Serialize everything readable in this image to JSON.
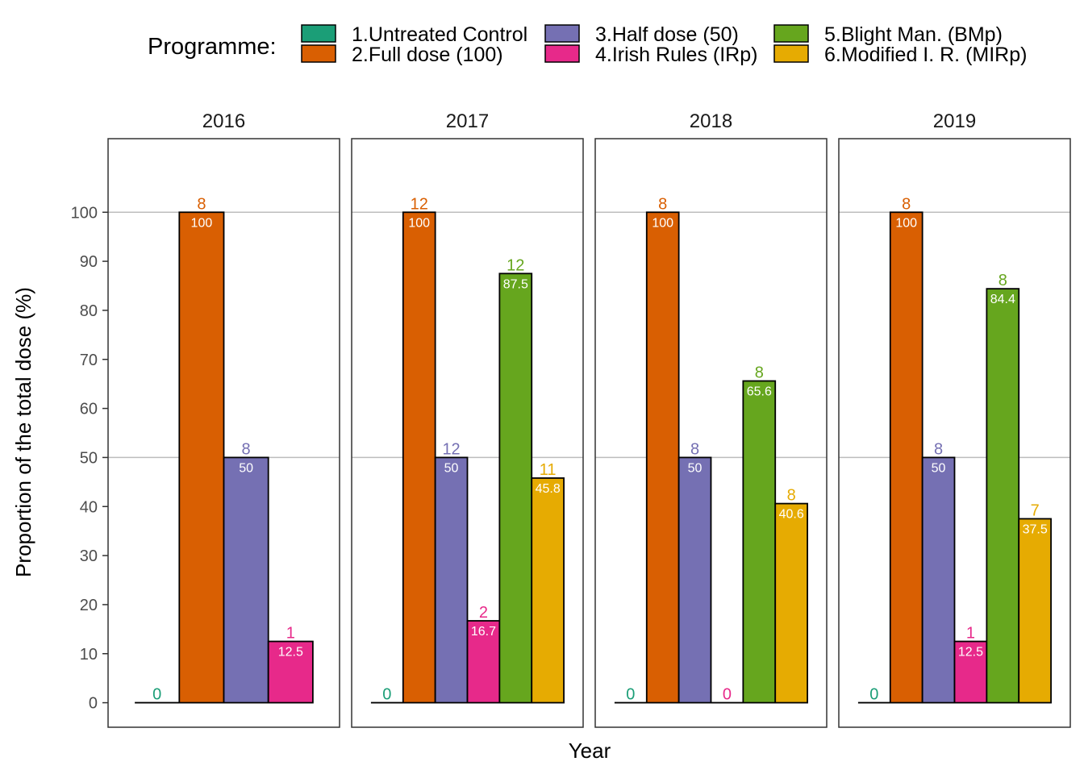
{
  "chart_data": {
    "type": "bar",
    "facets": [
      "2016",
      "2017",
      "2018",
      "2019"
    ],
    "xlabel": "Year",
    "ylabel": "Proportion of the total dose (%)",
    "ylim": [
      -5,
      115
    ],
    "y_ticks": [
      "0",
      "10",
      "20",
      "30",
      "40",
      "50",
      "60",
      "70",
      "80",
      "90",
      "100"
    ],
    "grid": "major horizontal lines at 50 and 100",
    "legend": {
      "title": "Programme:",
      "position": "top"
    },
    "series": [
      {
        "name": "1.Untreated Control",
        "color": "#1b9e77",
        "values": [
          0,
          0,
          0,
          0
        ],
        "labels": [
          "0",
          "0",
          "0",
          "0"
        ],
        "counts": [
          "0",
          "0",
          "0",
          "0"
        ]
      },
      {
        "name": "2.Full dose (100)",
        "color": "#d95f02",
        "values": [
          100,
          100,
          100,
          100
        ],
        "labels": [
          "100",
          "100",
          "100",
          "100"
        ],
        "counts": [
          "8",
          "12",
          "8",
          "8"
        ]
      },
      {
        "name": "3.Half dose (50)",
        "color": "#7570b3",
        "values": [
          50,
          50,
          50,
          50
        ],
        "labels": [
          "50",
          "50",
          "50",
          "50"
        ],
        "counts": [
          "8",
          "12",
          "8",
          "8"
        ]
      },
      {
        "name": "4.Irish Rules (IRp)",
        "color": "#e7298a",
        "values": [
          12.5,
          16.7,
          0,
          12.5
        ],
        "labels": [
          "12.5",
          "16.7",
          "0",
          "12.5"
        ],
        "counts": [
          "1",
          "2",
          "0",
          "1"
        ]
      },
      {
        "name": "5.Blight Man. (BMp)",
        "color": "#66a61e",
        "values": [
          null,
          87.5,
          65.6,
          84.4
        ],
        "labels": [
          null,
          "87.5",
          "65.6",
          "84.4"
        ],
        "counts": [
          null,
          "12",
          "8",
          "8"
        ]
      },
      {
        "name": "6.Modified I. R. (MIRp)",
        "color": "#e6ab02",
        "values": [
          null,
          45.8,
          40.6,
          37.5
        ],
        "labels": [
          null,
          "45.8",
          "40.6",
          "37.5"
        ],
        "counts": [
          null,
          "11",
          "8",
          "7"
        ]
      }
    ]
  }
}
